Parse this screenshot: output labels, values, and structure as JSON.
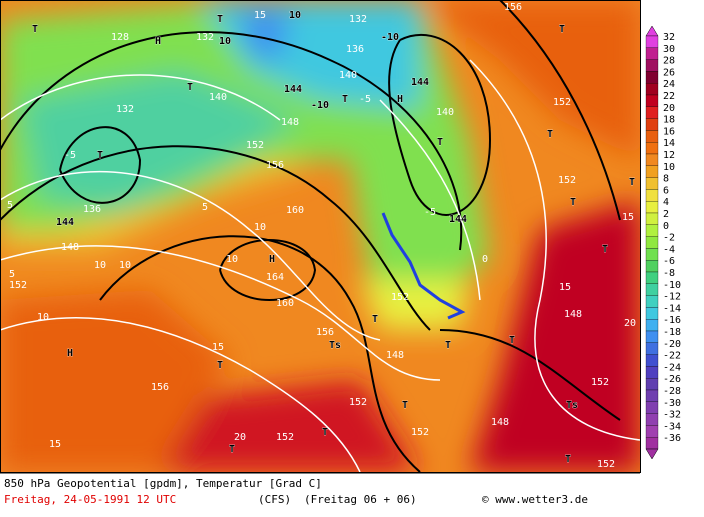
{
  "title": "850 hPa Geopotential [gpdm], Temperatur [Grad C]",
  "date": "Freitag, 24-05-1991  12 UTC",
  "model": "(CFS)",
  "forecast": "(Freitag 06 + 06)",
  "credit": "© www.wetter3.de",
  "colorbar": {
    "levels": [
      32,
      30,
      28,
      26,
      24,
      22,
      20,
      18,
      16,
      14,
      12,
      10,
      8,
      6,
      4,
      2,
      0,
      -2,
      -4,
      -6,
      -8,
      -10,
      -12,
      -14,
      -16,
      -18,
      -20,
      -22,
      -24,
      -26,
      -28,
      -30,
      -32,
      -34,
      -36
    ],
    "colors": [
      "#e040e0",
      "#c02090",
      "#a01060",
      "#800030",
      "#a00020",
      "#c00020",
      "#e02020",
      "#e04010",
      "#e86010",
      "#f07010",
      "#f08820",
      "#f0a020",
      "#f0c030",
      "#f0e040",
      "#e8f040",
      "#d0f040",
      "#b0f040",
      "#90e840",
      "#70e050",
      "#50d060",
      "#40d080",
      "#40d0a0",
      "#40d0c0",
      "#40c8e0",
      "#40b0f0",
      "#4090f0",
      "#4070e0",
      "#4050d0",
      "#5040c0",
      "#6040b0",
      "#7040b0",
      "#8040b0",
      "#9040b0",
      "#a040b0",
      "#a030a0"
    ]
  },
  "map_labels": [
    "T",
    "128",
    "H",
    "132",
    "10",
    "T",
    "15",
    "10",
    "132",
    "-10",
    "136",
    "140",
    "T",
    "-5",
    "H",
    "144",
    "144",
    "-10",
    "T",
    "140",
    "132",
    "T",
    "-5",
    "148",
    "152",
    "156",
    "T",
    "140",
    "156",
    "T",
    "152",
    "T",
    "152",
    "T",
    "144",
    "-5",
    "5",
    "160",
    "10",
    "10",
    "H",
    "164",
    "160",
    "152",
    "5",
    "10",
    "10",
    "H",
    "15",
    "T",
    "156",
    "Ts",
    "T",
    "152",
    "148",
    "T",
    "T",
    "148",
    "20",
    "T",
    "15",
    "152",
    "Ts",
    "T",
    "152",
    "156",
    "15",
    "20",
    "T",
    "T",
    "152",
    "152",
    "148",
    "T",
    "152",
    "15",
    "T",
    "5",
    "136",
    "144",
    "148",
    "10",
    "0"
  ]
}
